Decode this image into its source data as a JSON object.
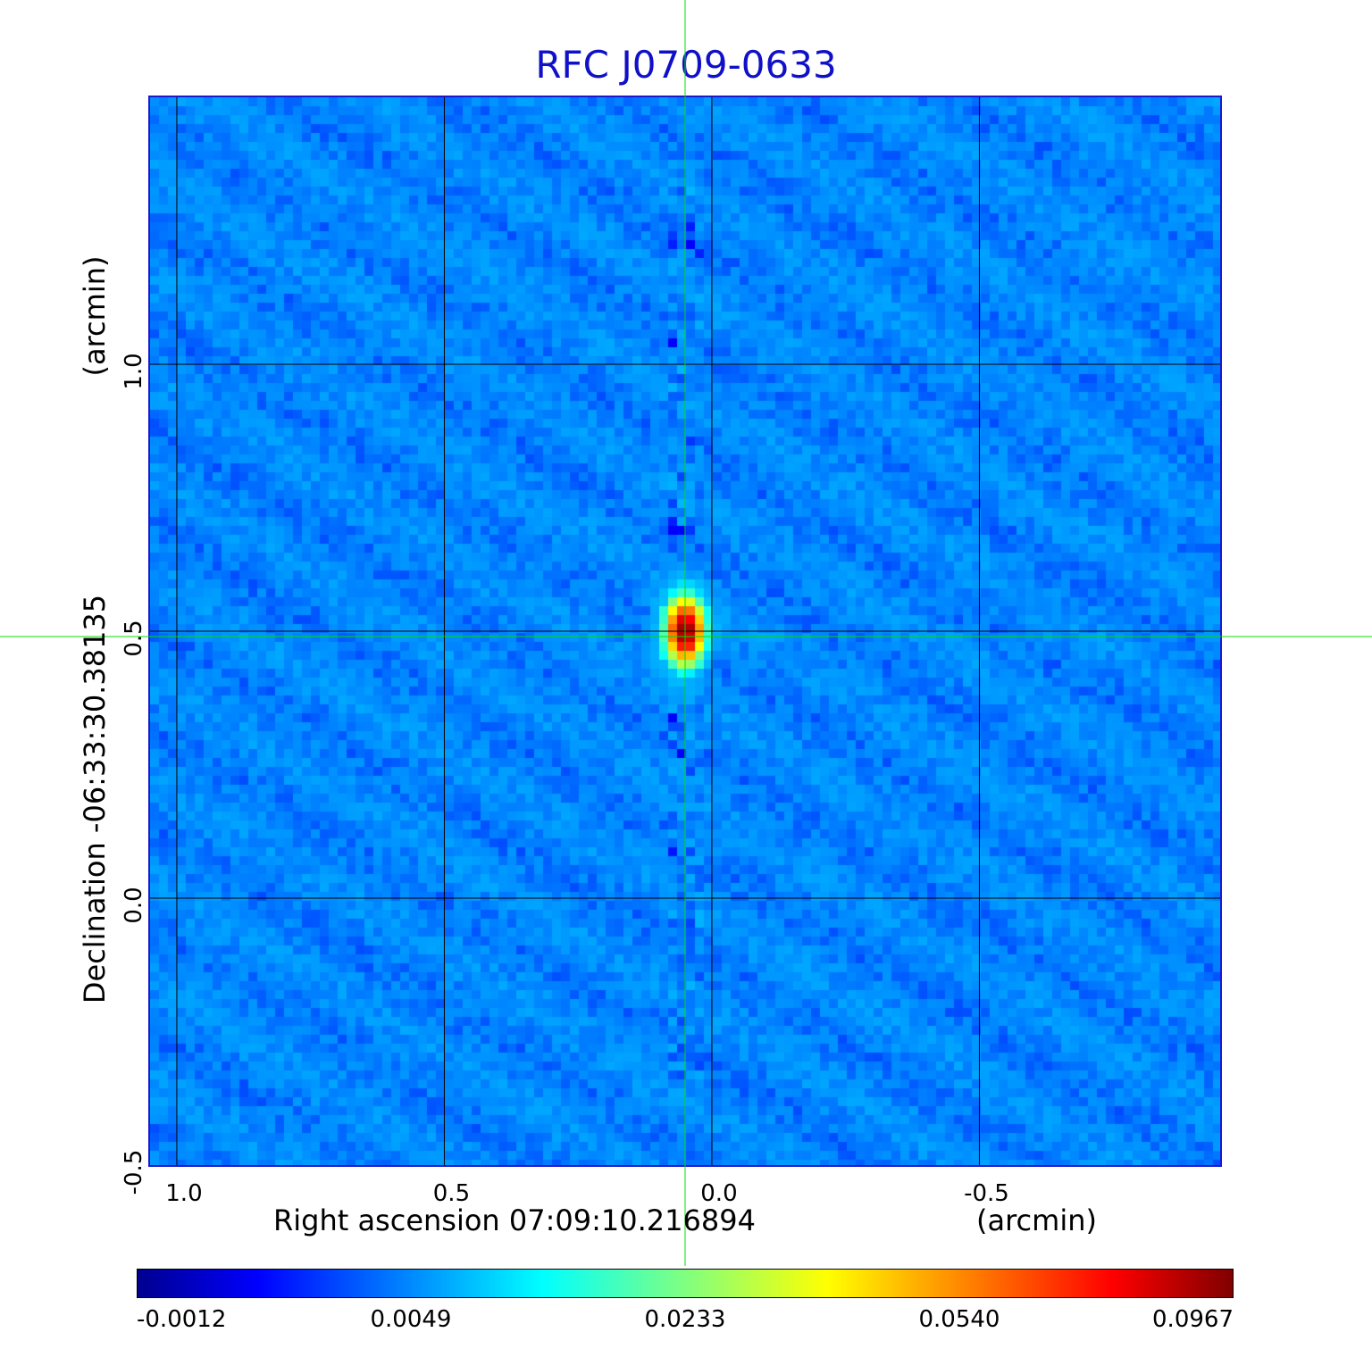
{
  "chart_data": {
    "type": "heatmap",
    "title": "RFC J0709-0633",
    "xlabel": "Right ascension  07:09:10.216894",
    "xunit": "(arcmin)",
    "ylabel": "Declination  -06:33:30.38135",
    "yunit": "(arcmin)",
    "x_ticks": [
      "1.0",
      "0.5",
      "0.0",
      "-0.5"
    ],
    "y_ticks": [
      "1.0",
      "0.5",
      "0.0",
      "-0.5"
    ],
    "xlim": [
      1.05,
      -0.95
    ],
    "ylim": [
      -0.5,
      1.5
    ],
    "grid": true,
    "crosshair": {
      "x": 0.05,
      "y": 0.49,
      "color": "#00e000"
    },
    "peak": {
      "x": 0.05,
      "y": 0.5,
      "value": 0.0967
    },
    "colorscale": "jet",
    "colorbar_ticks": [
      "-0.0012",
      "0.0049",
      "0.0233",
      "0.0540",
      "0.0967"
    ]
  }
}
